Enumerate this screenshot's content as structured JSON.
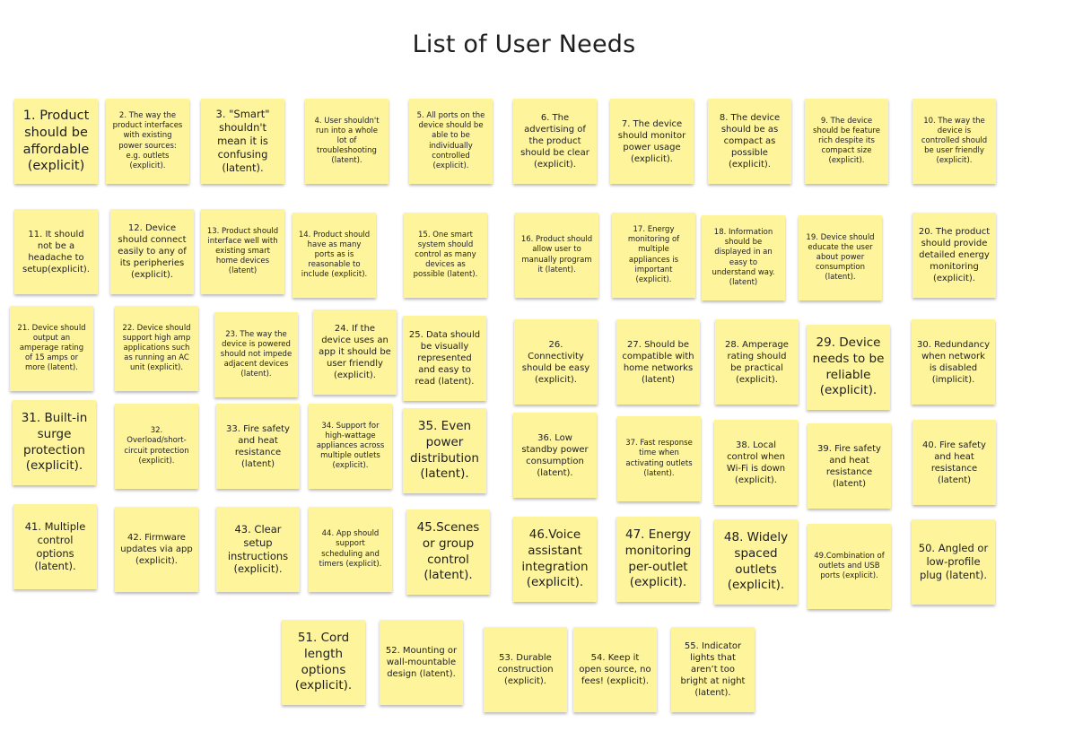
{
  "board": {
    "title": "List of User Needs"
  },
  "notes": [
    "1. Product should be affordable (explicit)",
    "2. The way the product interfaces with existing power sources: e.g. outlets (explicit).",
    "3. \"Smart\" shouldn't mean it is confusing (latent).",
    "4. User shouldn't run into a whole lot of troubleshooting (latent).",
    "5. All ports on the device should be able to be individually controlled (explicit).",
    "6. The advertising of the product should be clear (explicit).",
    "7. The device should monitor power usage (explicit).",
    "8. The device should be as compact as possible (explicit).",
    "9. The device should be feature rich despite its compact size (explicit).",
    "10. The way the device is controlled should be user friendly (explicit).",
    "11. It should not be a headache to setup(explicit).",
    "12. Device should connect easily to any of its peripheries (explicit).",
    "13. Product should interface well with existing smart home devices (latent)",
    "14. Product should have as many ports as is reasonable to include (explicit).",
    "15. One smart system should control as many devices as possible (latent).",
    "16. Product should allow user to manually program it (latent).",
    "17. Energy monitoring of multiple appliances is important (explicit).",
    "18. Information should be displayed in an easy to understand way. (latent)",
    "19. Device should educate the user about power consumption (latent).",
    "20. The product should provide detailed energy monitoring (explicit).",
    "21. Device should output an amperage rating of 15 amps or more (latent).",
    "22. Device should support high amp applications such as running an AC unit (explicit).",
    "23. The way the device is powered should not impede adjacent devices (latent).",
    "24. If the device uses an app it should be user friendly (explicit).",
    "25. Data should be visually represented and easy to read (latent).",
    "26. Connectivity should be easy (explicit).",
    "27. Should be compatible with home networks (latent)",
    "28. Amperage rating should be practical (explicit).",
    "29. Device needs to be reliable (explicit).",
    "30. Redundancy when network is disabled (implicit).",
    "31. Built-in surge protection (explicit).",
    "32. Overload/short-circuit protection (explicit).",
    "33. Fire safety and heat resistance (latent)",
    "34. Support for high-wattage appliances across multiple outlets (explicit).",
    "35. Even power distribution (latent).",
    "36. Low standby power consumption (latent).",
    "37. Fast response time when activating outlets (latent).",
    "38. Local control when Wi-Fi is down (explicit).",
    "39. Fire safety and heat resistance (latent)",
    "40. Fire safety and heat resistance (latent)",
    "41. Multiple control options (latent).",
    "42. Firmware updates via app (explicit).",
    "43. Clear setup instructions (explicit).",
    "44. App should support scheduling and timers (explicit).",
    "45.Scenes or group control (latent).",
    "46.Voice assistant integration (explicit).",
    "47. Energy monitoring per-outlet (explicit).",
    "48. Widely spaced outlets (explicit).",
    "49.Combination of outlets and USB ports (explicit).",
    "50. Angled or low-profile plug (latent).",
    "51. Cord length options (explicit).",
    "52. Mounting or wall-mountable design (latent).",
    "53. Durable construction (explicit).",
    "54. Keep it open source, no fees! (explicit).",
    "55. Indicator lights that aren’t too bright at night (latent)."
  ]
}
